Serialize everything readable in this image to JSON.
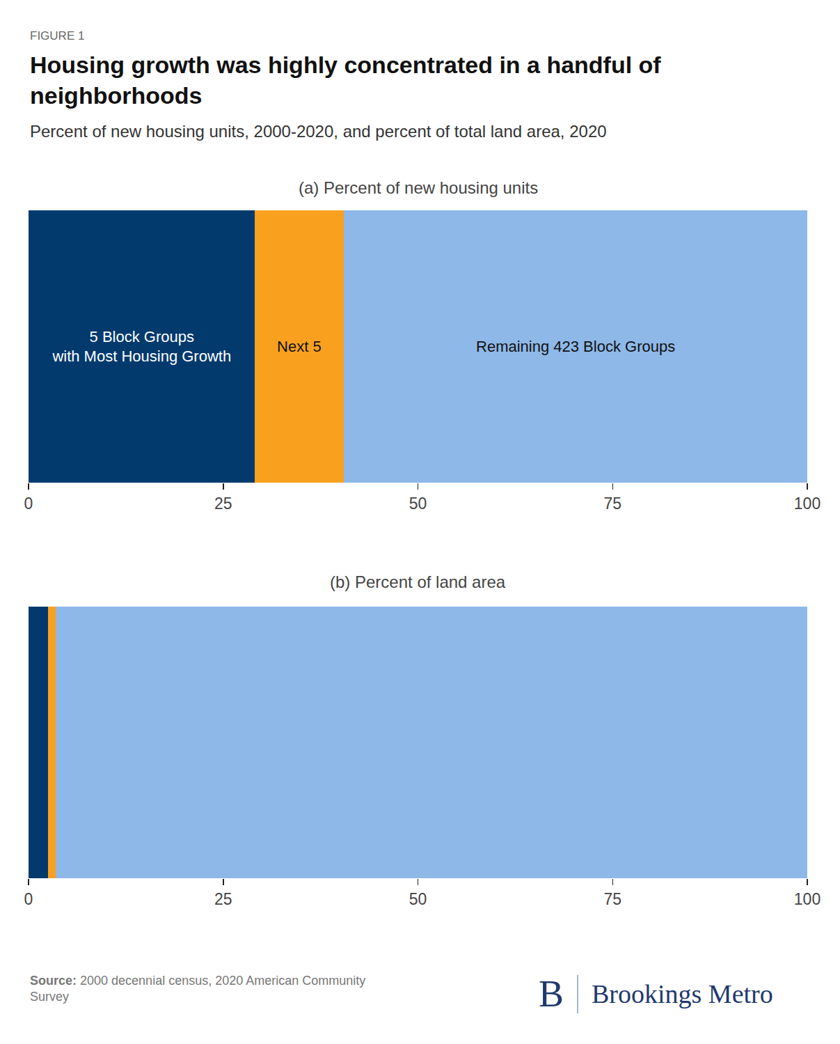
{
  "figure_label": "FIGURE 1",
  "title": "Housing growth was highly concentrated in a handful of\nneighborhoods",
  "subtitle": "Percent of new housing units, 2000-2020, and percent of total land area, 2020",
  "source_label": "Source:",
  "source": "2000 decennial census, 2020 American Community\nSurvey",
  "brand_mark": "B",
  "brand": "Brookings Metro",
  "chart_data": [
    {
      "type": "bar",
      "title": "(a) Percent of new housing units",
      "orientation": "horizontal",
      "stacked": true,
      "categories": [
        null
      ],
      "series": [
        {
          "name": "5 Block Groups\nwith Most Housing Growth",
          "color": "#023a6e",
          "values": [
            29
          ]
        },
        {
          "name": "Next 5",
          "color": "#f9a11e",
          "values": [
            11.5
          ]
        },
        {
          "name": "Remaining 423 Block Groups",
          "color": "#8db8e8",
          "values": [
            59.5
          ]
        }
      ],
      "xlim": [
        0,
        100
      ],
      "xticks": [
        0,
        25,
        50,
        75,
        100
      ],
      "grid": false,
      "tick_labels": "x"
    },
    {
      "type": "bar",
      "title": "(b) Percent of land area",
      "orientation": "horizontal",
      "stacked": true,
      "categories": [
        null
      ],
      "series": [
        {
          "color": "#023a6e",
          "values": [
            2.5
          ]
        },
        {
          "color": "#f9a11e",
          "values": [
            1
          ]
        },
        {
          "color": "#8db8e8",
          "values": [
            96.5
          ]
        }
      ],
      "xlim": [
        0,
        100
      ],
      "xticks": [
        0,
        25,
        50,
        75,
        100
      ],
      "grid": false,
      "tick_labels": "x"
    }
  ]
}
